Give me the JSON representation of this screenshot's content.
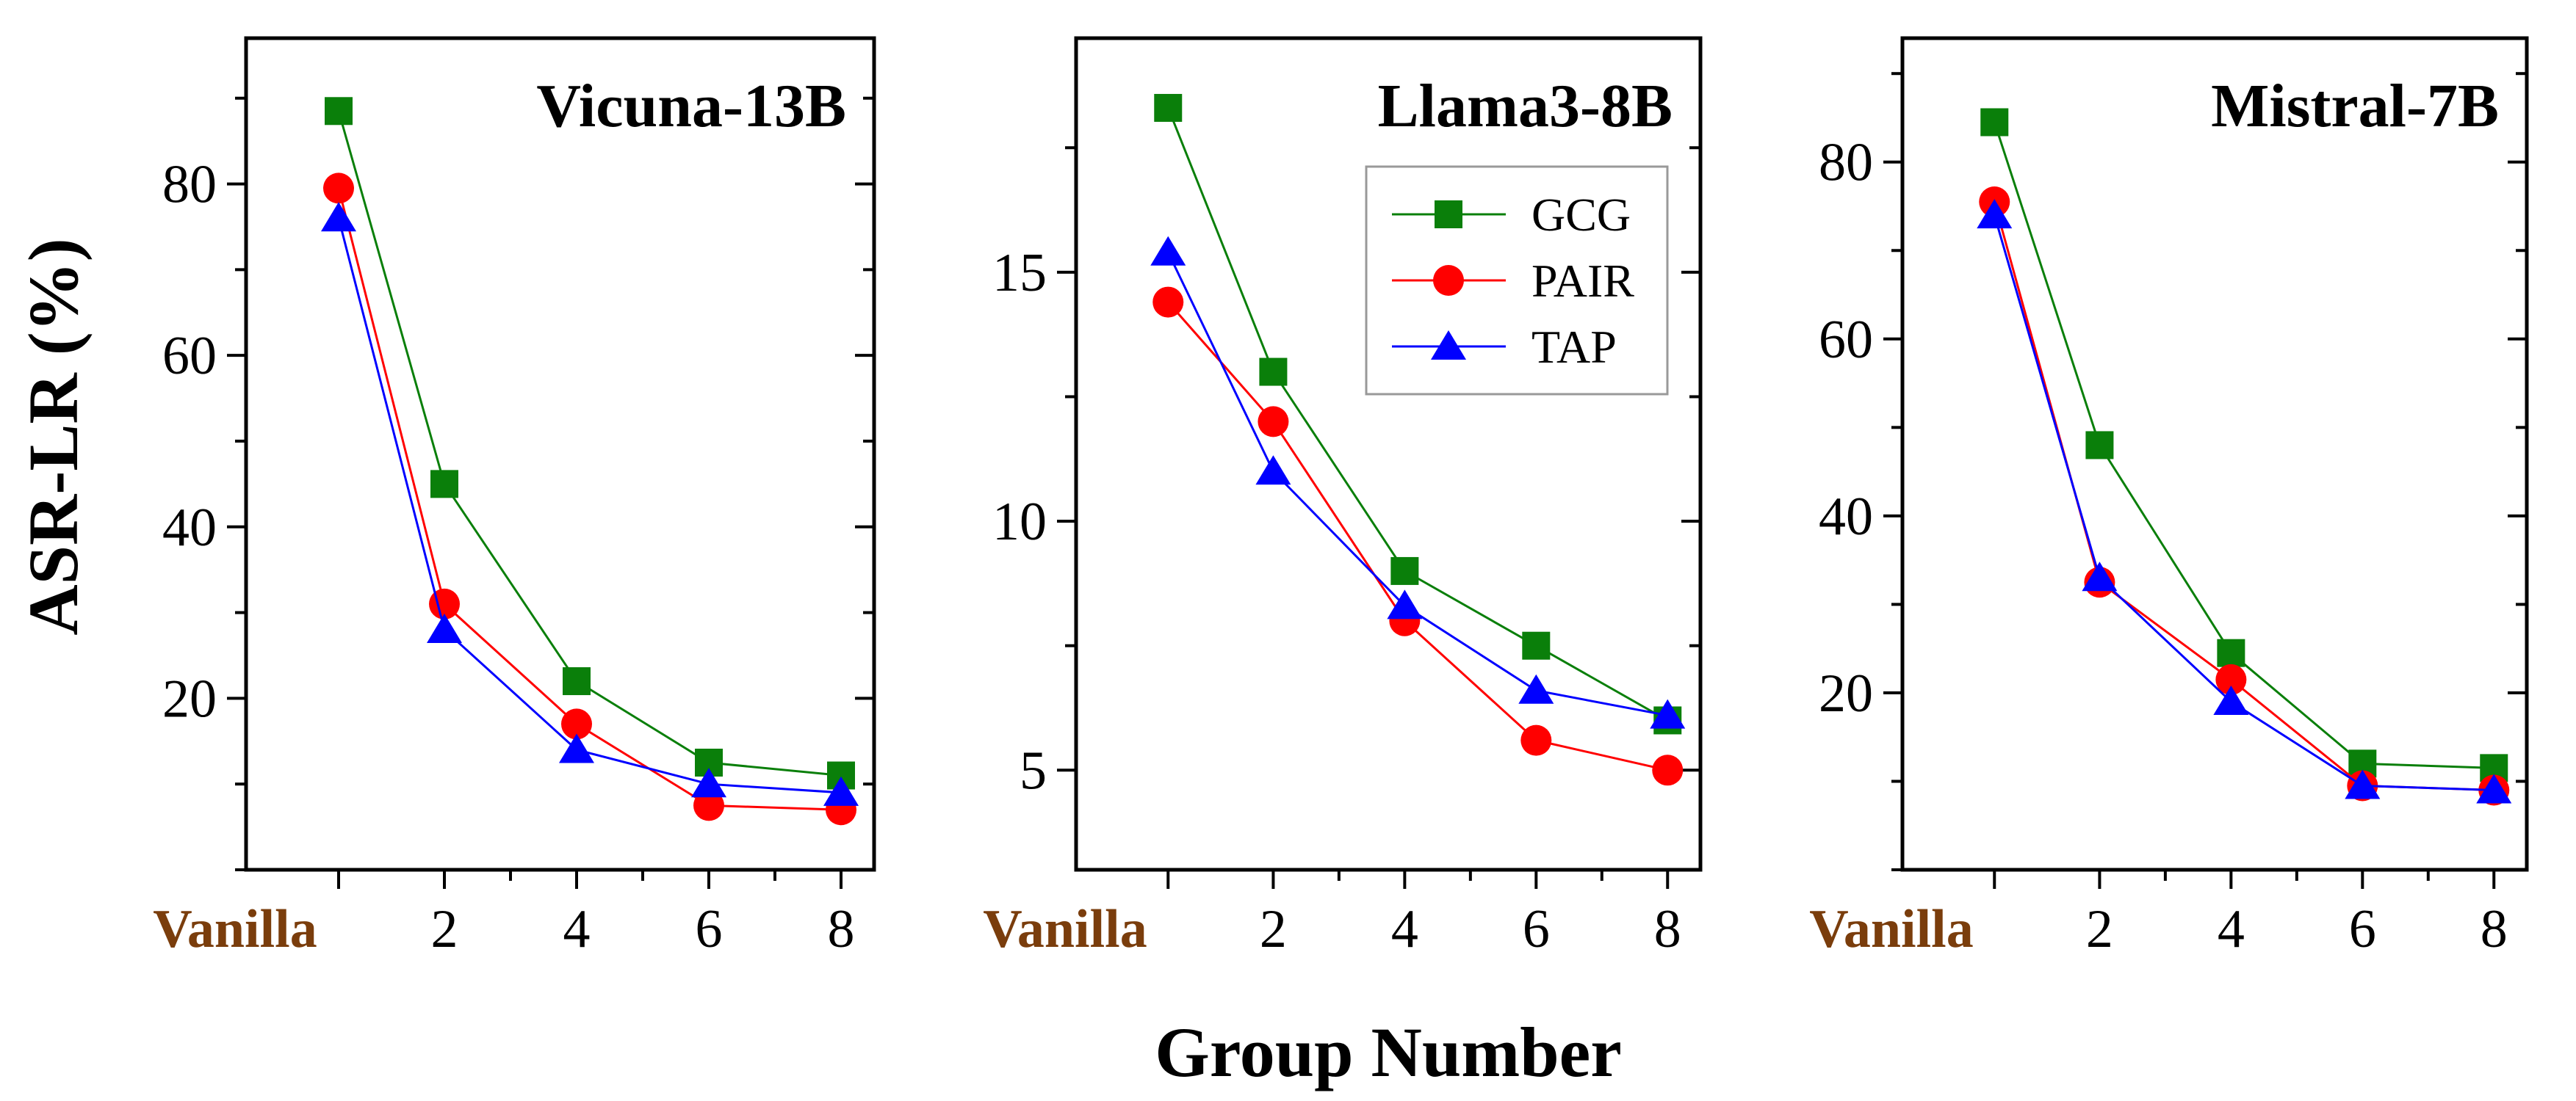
{
  "figure": {
    "ylabel": "ASR-LR (%)",
    "xlabel": "Group Number"
  },
  "colors": {
    "GCG": "#0a7f0a",
    "PAIR": "#ff0000",
    "TAP": "#0000ff",
    "vanilla": "#7a3d0c"
  },
  "chart_data": [
    {
      "type": "line",
      "title": "Vicuna-13B",
      "x_tick_labels": [
        "Vanilla",
        "2",
        "4",
        "6",
        "8"
      ],
      "x": [
        0.4,
        2,
        4,
        6,
        8
      ],
      "xlim": [
        -1,
        8.5
      ],
      "ylim": [
        0,
        97
      ],
      "y_ticks": [
        20,
        40,
        60,
        80
      ],
      "legend": false,
      "series": [
        {
          "name": "GCG",
          "marker": "square",
          "values": [
            88.5,
            45,
            22,
            12.5,
            11
          ]
        },
        {
          "name": "PAIR",
          "marker": "circle",
          "values": [
            79.5,
            31,
            17,
            7.5,
            7
          ]
        },
        {
          "name": "TAP",
          "marker": "triangle",
          "values": [
            76,
            28,
            14,
            10,
            9
          ]
        }
      ]
    },
    {
      "type": "line",
      "title": "Llama3-8B",
      "x_tick_labels": [
        "Vanilla",
        "2",
        "4",
        "6",
        "8"
      ],
      "x": [
        0.4,
        2,
        4,
        6,
        8
      ],
      "xlim": [
        -1,
        8.5
      ],
      "ylim": [
        3,
        19.7
      ],
      "y_ticks": [
        5,
        10,
        15
      ],
      "legend": true,
      "legend_position": "upper-right",
      "series": [
        {
          "name": "GCG",
          "marker": "square",
          "values": [
            18.3,
            13,
            9,
            7.5,
            6
          ]
        },
        {
          "name": "PAIR",
          "marker": "circle",
          "values": [
            14.4,
            12,
            8,
            5.6,
            5
          ]
        },
        {
          "name": "TAP",
          "marker": "triangle",
          "values": [
            15.4,
            11,
            8.3,
            6.6,
            6.1
          ]
        }
      ]
    },
    {
      "type": "line",
      "title": "Mistral-7B",
      "x_tick_labels": [
        "Vanilla",
        "2",
        "4",
        "6",
        "8"
      ],
      "x": [
        0.4,
        2,
        4,
        6,
        8
      ],
      "xlim": [
        -1,
        8.5
      ],
      "ylim": [
        0,
        94
      ],
      "y_ticks": [
        20,
        40,
        60,
        80
      ],
      "legend": false,
      "series": [
        {
          "name": "GCG",
          "marker": "square",
          "values": [
            84.5,
            48,
            24.5,
            12,
            11.5
          ]
        },
        {
          "name": "PAIR",
          "marker": "circle",
          "values": [
            75.5,
            32.5,
            21.5,
            9.5,
            9
          ]
        },
        {
          "name": "TAP",
          "marker": "triangle",
          "values": [
            74,
            33,
            19,
            9.5,
            9
          ]
        }
      ]
    }
  ]
}
